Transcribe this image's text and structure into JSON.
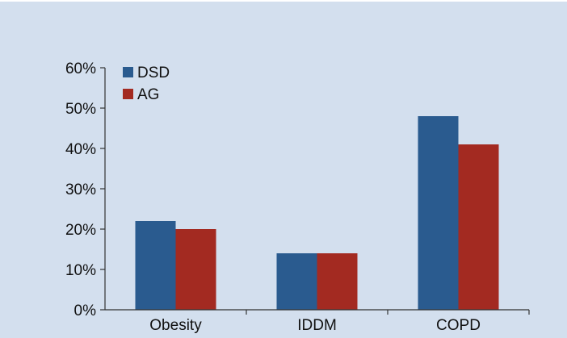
{
  "chart_data": {
    "type": "bar",
    "categories": [
      "Obesity",
      "IDDM",
      "COPD"
    ],
    "series": [
      {
        "name": "DSD",
        "values": [
          22,
          14,
          48
        ],
        "color": "#2a5b8f"
      },
      {
        "name": "AG",
        "values": [
          20,
          14,
          41
        ],
        "color": "#a32a21"
      }
    ],
    "yticks": [
      "0%",
      "10%",
      "20%",
      "30%",
      "40%",
      "50%",
      "60%"
    ],
    "ylim": [
      0,
      60
    ],
    "grid": false,
    "legend_position": "top-left",
    "background": "#d3dfee",
    "axis_color": "#333333"
  }
}
